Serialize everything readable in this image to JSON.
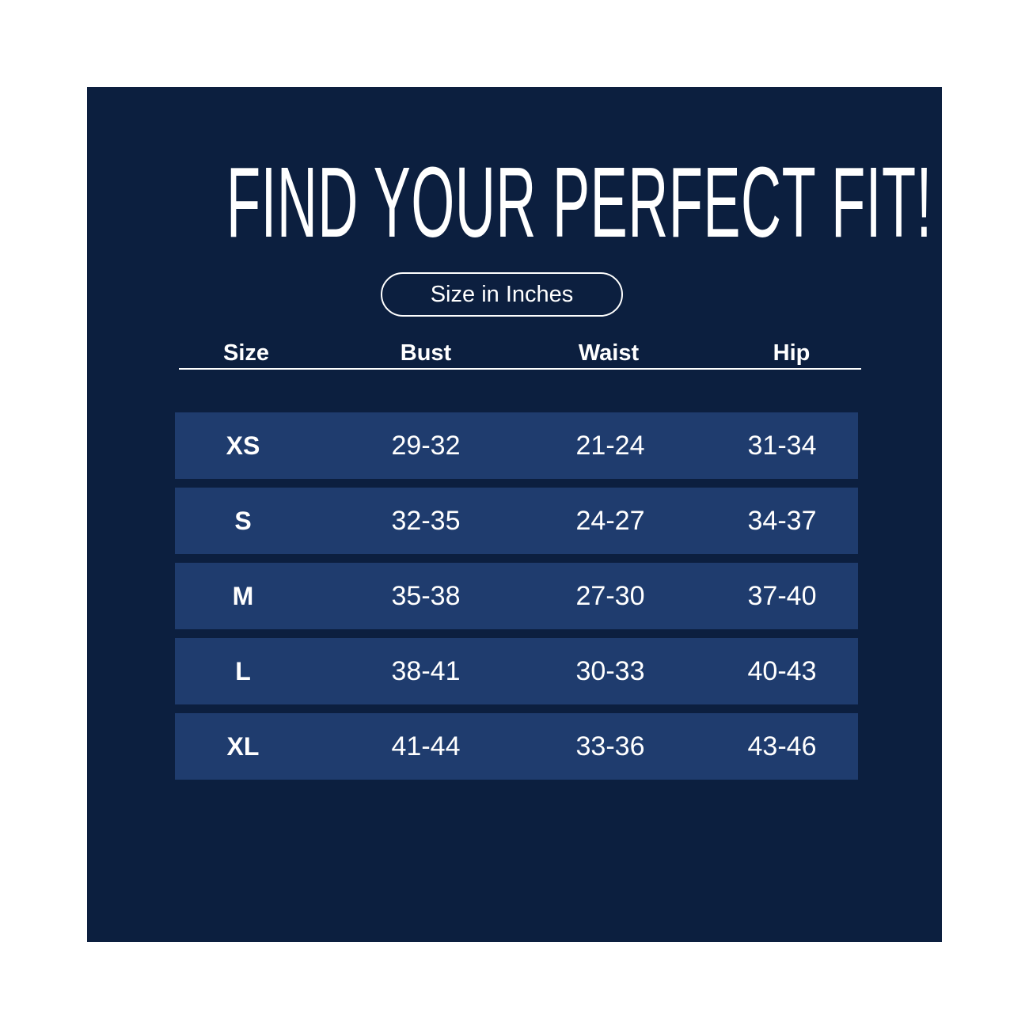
{
  "title": "FIND YOUR PERFECT FIT!",
  "unit_label": "Size in Inches",
  "headers": [
    "Size",
    "Bust",
    "Waist",
    "Hip"
  ],
  "rows": [
    [
      "XS",
      "29-32",
      "21-24",
      "31-34"
    ],
    [
      "S",
      "32-35",
      "24-27",
      "34-37"
    ],
    [
      "M",
      "35-38",
      "27-30",
      "37-40"
    ],
    [
      "L",
      "38-41",
      "30-33",
      "40-43"
    ],
    [
      "XL",
      "41-44",
      "33-36",
      "43-46"
    ]
  ],
  "colors": {
    "background": "#0c1f3f",
    "row": "#1f3c6e",
    "text": "#ffffff"
  }
}
